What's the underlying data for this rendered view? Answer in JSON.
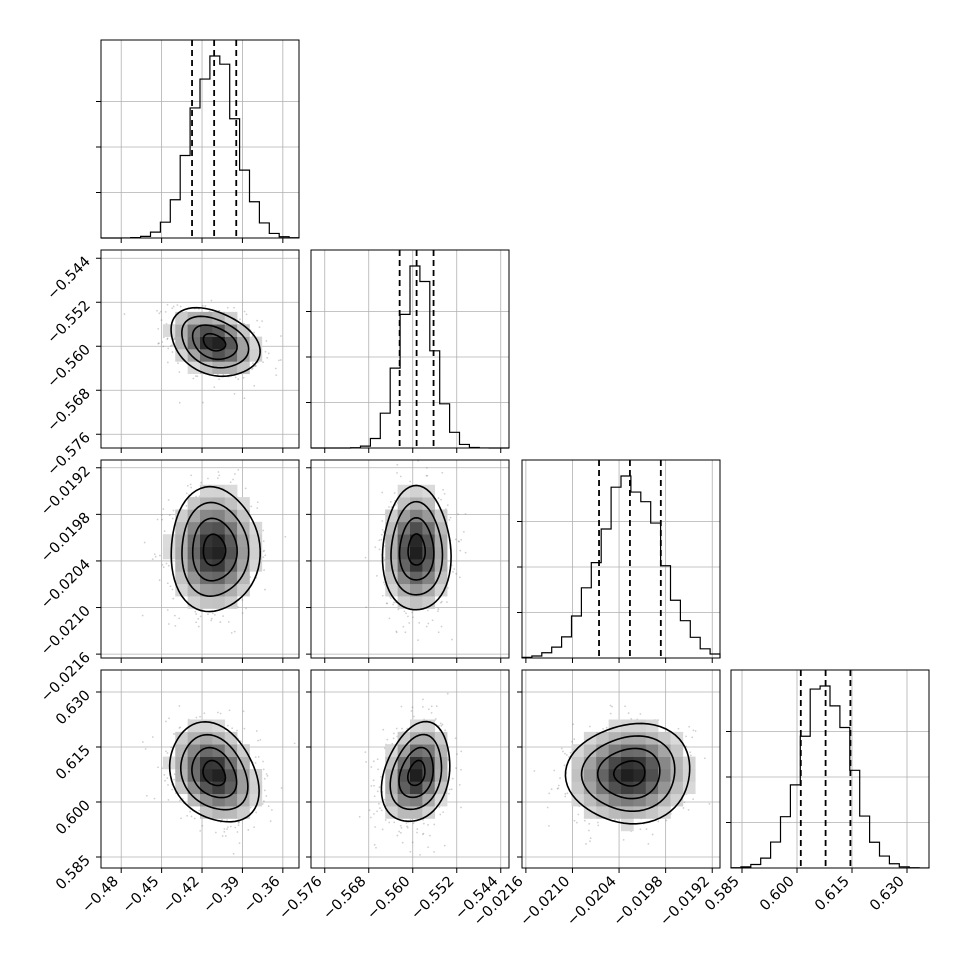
{
  "chart_data": {
    "type": "corner",
    "grid": true,
    "quantiles": [
      0.16,
      0.5,
      0.84
    ],
    "parameters": [
      {
        "mean": -0.411,
        "sd": 0.0165,
        "range": [
          -0.495,
          -0.348
        ],
        "ticks": [
          -0.48,
          -0.45,
          -0.42,
          -0.39,
          -0.36
        ],
        "tick_labels": [
          "−0.48",
          "−0.45",
          "−0.42",
          "−0.39",
          "−0.36"
        ]
      },
      {
        "mean": -0.5593,
        "sd": 0.0031,
        "range": [
          -0.5785,
          -0.5425
        ],
        "ticks": [
          -0.544,
          -0.552,
          -0.56,
          -0.568,
          -0.576
        ],
        "tick_labels": [
          "−0.544",
          "−0.552",
          "−0.560",
          "−0.568",
          "−0.576"
        ]
      },
      {
        "mean": -0.02026,
        "sd": 0.0004,
        "range": [
          -0.02165,
          -0.0191
        ],
        "ticks": [
          -0.0216,
          -0.021,
          -0.0204,
          -0.0198,
          -0.0192
        ],
        "tick_labels": [
          "−0.0216",
          "−0.0210",
          "−0.0204",
          "−0.0198",
          "−0.0192"
        ]
      },
      {
        "mean": 0.6078,
        "sd": 0.0068,
        "range": [
          0.582,
          0.636
        ],
        "ticks": [
          0.585,
          0.6,
          0.615,
          0.63
        ],
        "tick_labels": [
          "0.585",
          "0.600",
          "0.615",
          "0.630"
        ]
      }
    ],
    "correlations": [
      [
        1.0,
        -0.3,
        0.0,
        -0.25
      ],
      [
        -0.3,
        1.0,
        0.0,
        0.25
      ],
      [
        0.0,
        0.0,
        1.0,
        0.05
      ],
      [
        -0.25,
        0.25,
        0.05,
        1.0
      ]
    ]
  }
}
